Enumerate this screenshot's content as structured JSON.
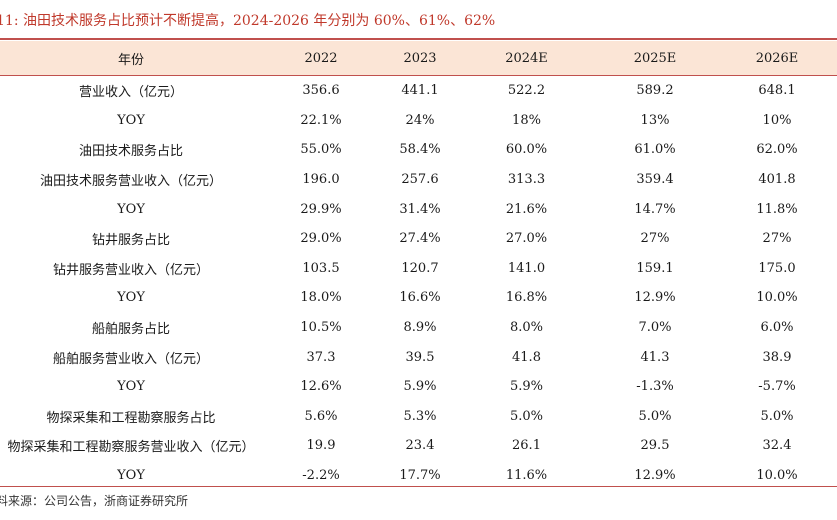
{
  "title": "11:  油田技术服务占比预计不断提高，2024-2026 年分别为 60%、61%、62%",
  "table": {
    "headers": [
      "年份",
      "2022",
      "2023",
      "2024E",
      "2025E",
      "2026E"
    ],
    "rows": [
      [
        "营业收入（亿元）",
        "356.6",
        "441.1",
        "522.2",
        "589.2",
        "648.1"
      ],
      [
        "YOY",
        "22.1%",
        "24%",
        "18%",
        "13%",
        "10%"
      ],
      [
        "油田技术服务占比",
        "55.0%",
        "58.4%",
        "60.0%",
        "61.0%",
        "62.0%"
      ],
      [
        "油田技术服务营业收入（亿元）",
        "196.0",
        "257.6",
        "313.3",
        "359.4",
        "401.8"
      ],
      [
        "YOY",
        "29.9%",
        "31.4%",
        "21.6%",
        "14.7%",
        "11.8%"
      ],
      [
        "钻井服务占比",
        "29.0%",
        "27.4%",
        "27.0%",
        "27%",
        "27%"
      ],
      [
        "钻井服务营业收入（亿元）",
        "103.5",
        "120.7",
        "141.0",
        "159.1",
        "175.0"
      ],
      [
        "YOY",
        "18.0%",
        "16.6%",
        "16.8%",
        "12.9%",
        "10.0%"
      ],
      [
        "船舶服务占比",
        "10.5%",
        "8.9%",
        "8.0%",
        "7.0%",
        "6.0%"
      ],
      [
        "船舶服务营业收入（亿元）",
        "37.3",
        "39.5",
        "41.8",
        "41.3",
        "38.9"
      ],
      [
        "YOY",
        "12.6%",
        "5.9%",
        "5.9%",
        "-1.3%",
        "-5.7%"
      ],
      [
        "物探采集和工程勘察服务占比",
        "5.6%",
        "5.3%",
        "5.0%",
        "5.0%",
        "5.0%"
      ],
      [
        "物探采集和工程勘察服务营业收入（亿元）",
        "19.9",
        "23.4",
        "26.1",
        "29.5",
        "32.4"
      ],
      [
        "YOY",
        "-2.2%",
        "17.7%",
        "11.6%",
        "12.9%",
        "10.0%"
      ]
    ]
  },
  "source": "料来源：公司公告，浙商证券研究所",
  "colors": {
    "title": "#c0392b",
    "header_bg": "#fbe5d6",
    "rule": "#c0504d"
  }
}
